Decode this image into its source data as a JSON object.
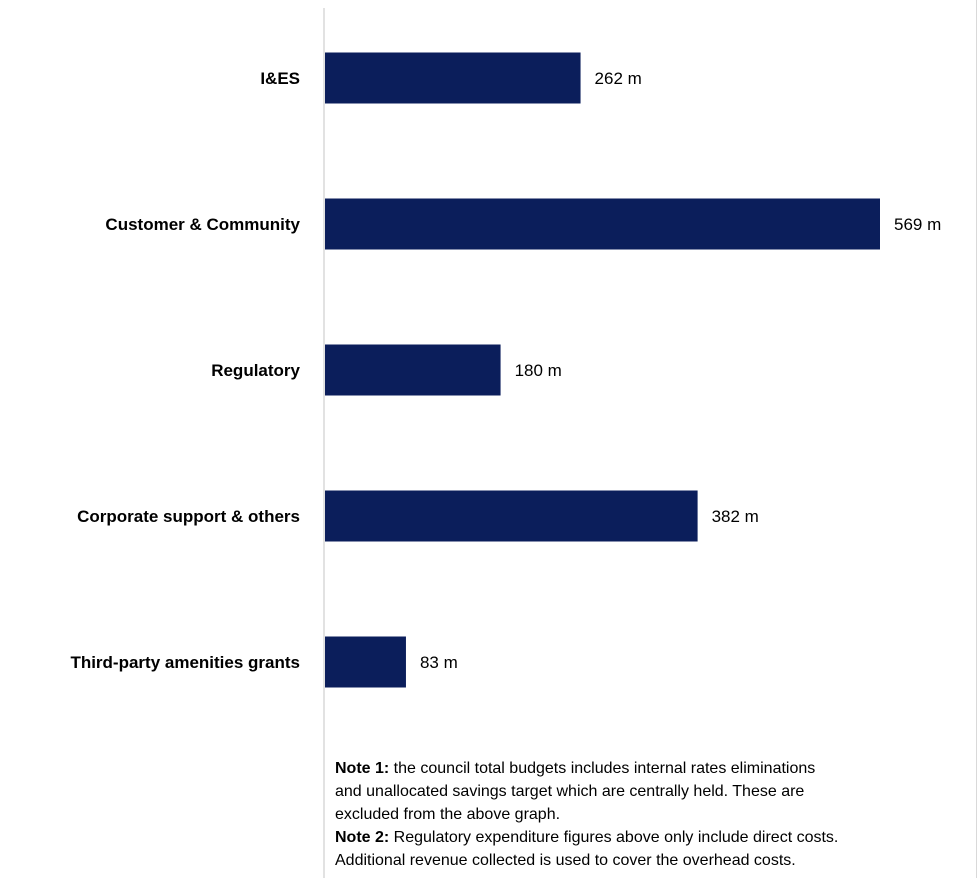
{
  "chart_data": {
    "type": "bar",
    "orientation": "horizontal",
    "categories": [
      "I&ES",
      "Customer & Community",
      "Regulatory",
      "Corporate support & others",
      "Third-party amenities grants"
    ],
    "values": [
      262,
      569,
      180,
      382,
      83
    ],
    "data_labels": [
      "262 m",
      "569 m",
      "180 m",
      "382 m",
      "83 m"
    ],
    "unit": "m",
    "xlim": [
      0,
      600
    ],
    "title": "",
    "xlabel": "",
    "ylabel": "",
    "grid": false,
    "legend": "none",
    "bar_color": "#0b1e5b"
  },
  "notes": {
    "note1_label": "Note 1:",
    "note1_text_line1": " the council total budgets includes internal rates eliminations",
    "note1_text_line2": "and unallocated savings target which are centrally held. These are",
    "note1_text_line3": "excluded from the above graph.",
    "note2_label": "Note 2:",
    "note2_text_line1": " Regulatory expenditure figures above only include direct costs.",
    "note2_text_line2": "Additional revenue collected is used to cover the overhead costs."
  },
  "colors": {
    "bar": "#0b1e5b",
    "axis": "#d9d9d9",
    "text": "#000000"
  }
}
